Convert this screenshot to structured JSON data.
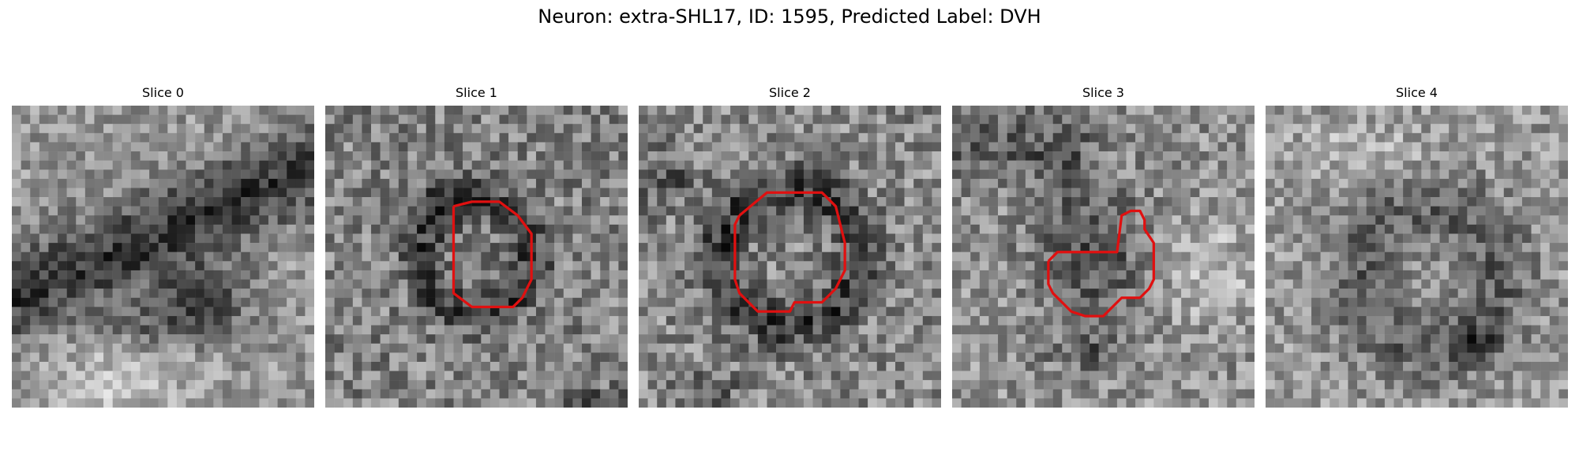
{
  "figure": {
    "title": "Neuron: extra-SHL17, ID: 1595, Predicted Label: DVH"
  },
  "contour_color": "#e01010",
  "panels": [
    {
      "title": "Slice 0",
      "seed": 101,
      "base": 150,
      "noise": 60,
      "features": [
        {
          "kind": "band",
          "x1": 0,
          "y1": 21,
          "x2": 34,
          "y2": 6,
          "width": 3.2,
          "depth": 95
        },
        {
          "kind": "blob",
          "cx": 21,
          "cy": 21,
          "rx": 5,
          "ry": 4,
          "depth": 80
        },
        {
          "kind": "blob",
          "cx": 15,
          "cy": 24,
          "rx": 5,
          "ry": 3,
          "depth": 45
        },
        {
          "kind": "bright",
          "cx": 12,
          "cy": 30,
          "rx": 8,
          "ry": 4,
          "depth": 45
        }
      ],
      "contour": []
    },
    {
      "title": "Slice 1",
      "seed": 202,
      "base": 130,
      "noise": 75,
      "features": [
        {
          "kind": "ring",
          "cx": 16.5,
          "cy": 16.5,
          "r": 6.0,
          "width": 1.6,
          "depth": 70
        },
        {
          "kind": "blob",
          "cx": 13,
          "cy": 10,
          "rx": 3,
          "ry": 2,
          "depth": 60
        },
        {
          "kind": "blob",
          "cx": 30,
          "cy": 33,
          "rx": 4,
          "ry": 2,
          "depth": 55
        }
      ],
      "contour": [
        [
          14,
          11
        ],
        [
          16,
          10.5
        ],
        [
          19,
          10.5
        ],
        [
          21,
          12
        ],
        [
          22.5,
          14
        ],
        [
          22.5,
          19
        ],
        [
          21.5,
          21
        ],
        [
          20.5,
          22
        ],
        [
          16,
          22
        ],
        [
          14,
          20.5
        ],
        [
          14,
          11
        ]
      ]
    },
    {
      "title": "Slice 2",
      "seed": 303,
      "base": 135,
      "noise": 75,
      "features": [
        {
          "kind": "ring",
          "cx": 16.5,
          "cy": 16.5,
          "r": 7.5,
          "width": 1.8,
          "depth": 75
        },
        {
          "kind": "blob",
          "cx": 3,
          "cy": 8,
          "rx": 3,
          "ry": 3,
          "depth": 50
        },
        {
          "kind": "blob",
          "cx": 8,
          "cy": 31,
          "rx": 3,
          "ry": 2,
          "depth": 45
        }
      ],
      "contour": [
        [
          11,
          12
        ],
        [
          14,
          9.5
        ],
        [
          20,
          9.5
        ],
        [
          21.5,
          11
        ],
        [
          22.5,
          15
        ],
        [
          22.5,
          18
        ],
        [
          21.5,
          20
        ],
        [
          20,
          21.5
        ],
        [
          17,
          21.5
        ],
        [
          16.5,
          22.5
        ],
        [
          13,
          22.5
        ],
        [
          11,
          20.5
        ],
        [
          10.5,
          19
        ],
        [
          10.5,
          13
        ],
        [
          11,
          12
        ]
      ]
    },
    {
      "title": "Slice 3",
      "seed": 404,
      "base": 145,
      "noise": 70,
      "features": [
        {
          "kind": "blob",
          "cx": 15,
          "cy": 16,
          "rx": 6,
          "ry": 7,
          "depth": 70
        },
        {
          "kind": "band",
          "x1": 0,
          "y1": 3,
          "x2": 12,
          "y2": 5,
          "width": 3,
          "depth": 55
        },
        {
          "kind": "blob",
          "cx": 15,
          "cy": 27,
          "rx": 4,
          "ry": 2,
          "depth": 55
        },
        {
          "kind": "bright",
          "cx": 28,
          "cy": 18,
          "rx": 5,
          "ry": 5,
          "depth": 45
        }
      ],
      "contour": [
        [
          10.5,
          17
        ],
        [
          11.5,
          16
        ],
        [
          18,
          16
        ],
        [
          18.5,
          12
        ],
        [
          19.5,
          11.5
        ],
        [
          20.5,
          11.5
        ],
        [
          21,
          12.5
        ],
        [
          21,
          13.5
        ],
        [
          22,
          15
        ],
        [
          22,
          19
        ],
        [
          21.5,
          20
        ],
        [
          20.5,
          21
        ],
        [
          18.5,
          21
        ],
        [
          16.5,
          23
        ],
        [
          14.5,
          23
        ],
        [
          13,
          22.5
        ],
        [
          11,
          20.5
        ],
        [
          10.5,
          19.5
        ],
        [
          10.5,
          17
        ]
      ]
    },
    {
      "title": "Slice 4",
      "seed": 505,
      "base": 150,
      "noise": 65,
      "features": [
        {
          "kind": "ring",
          "cx": 18,
          "cy": 19,
          "r": 7.5,
          "width": 2.8,
          "depth": 55
        },
        {
          "kind": "blob",
          "cx": 22.5,
          "cy": 26,
          "rx": 2.5,
          "ry": 2,
          "depth": 70
        },
        {
          "kind": "bright",
          "cx": 10,
          "cy": 5,
          "rx": 8,
          "ry": 3,
          "depth": 30
        }
      ],
      "contour": []
    }
  ]
}
